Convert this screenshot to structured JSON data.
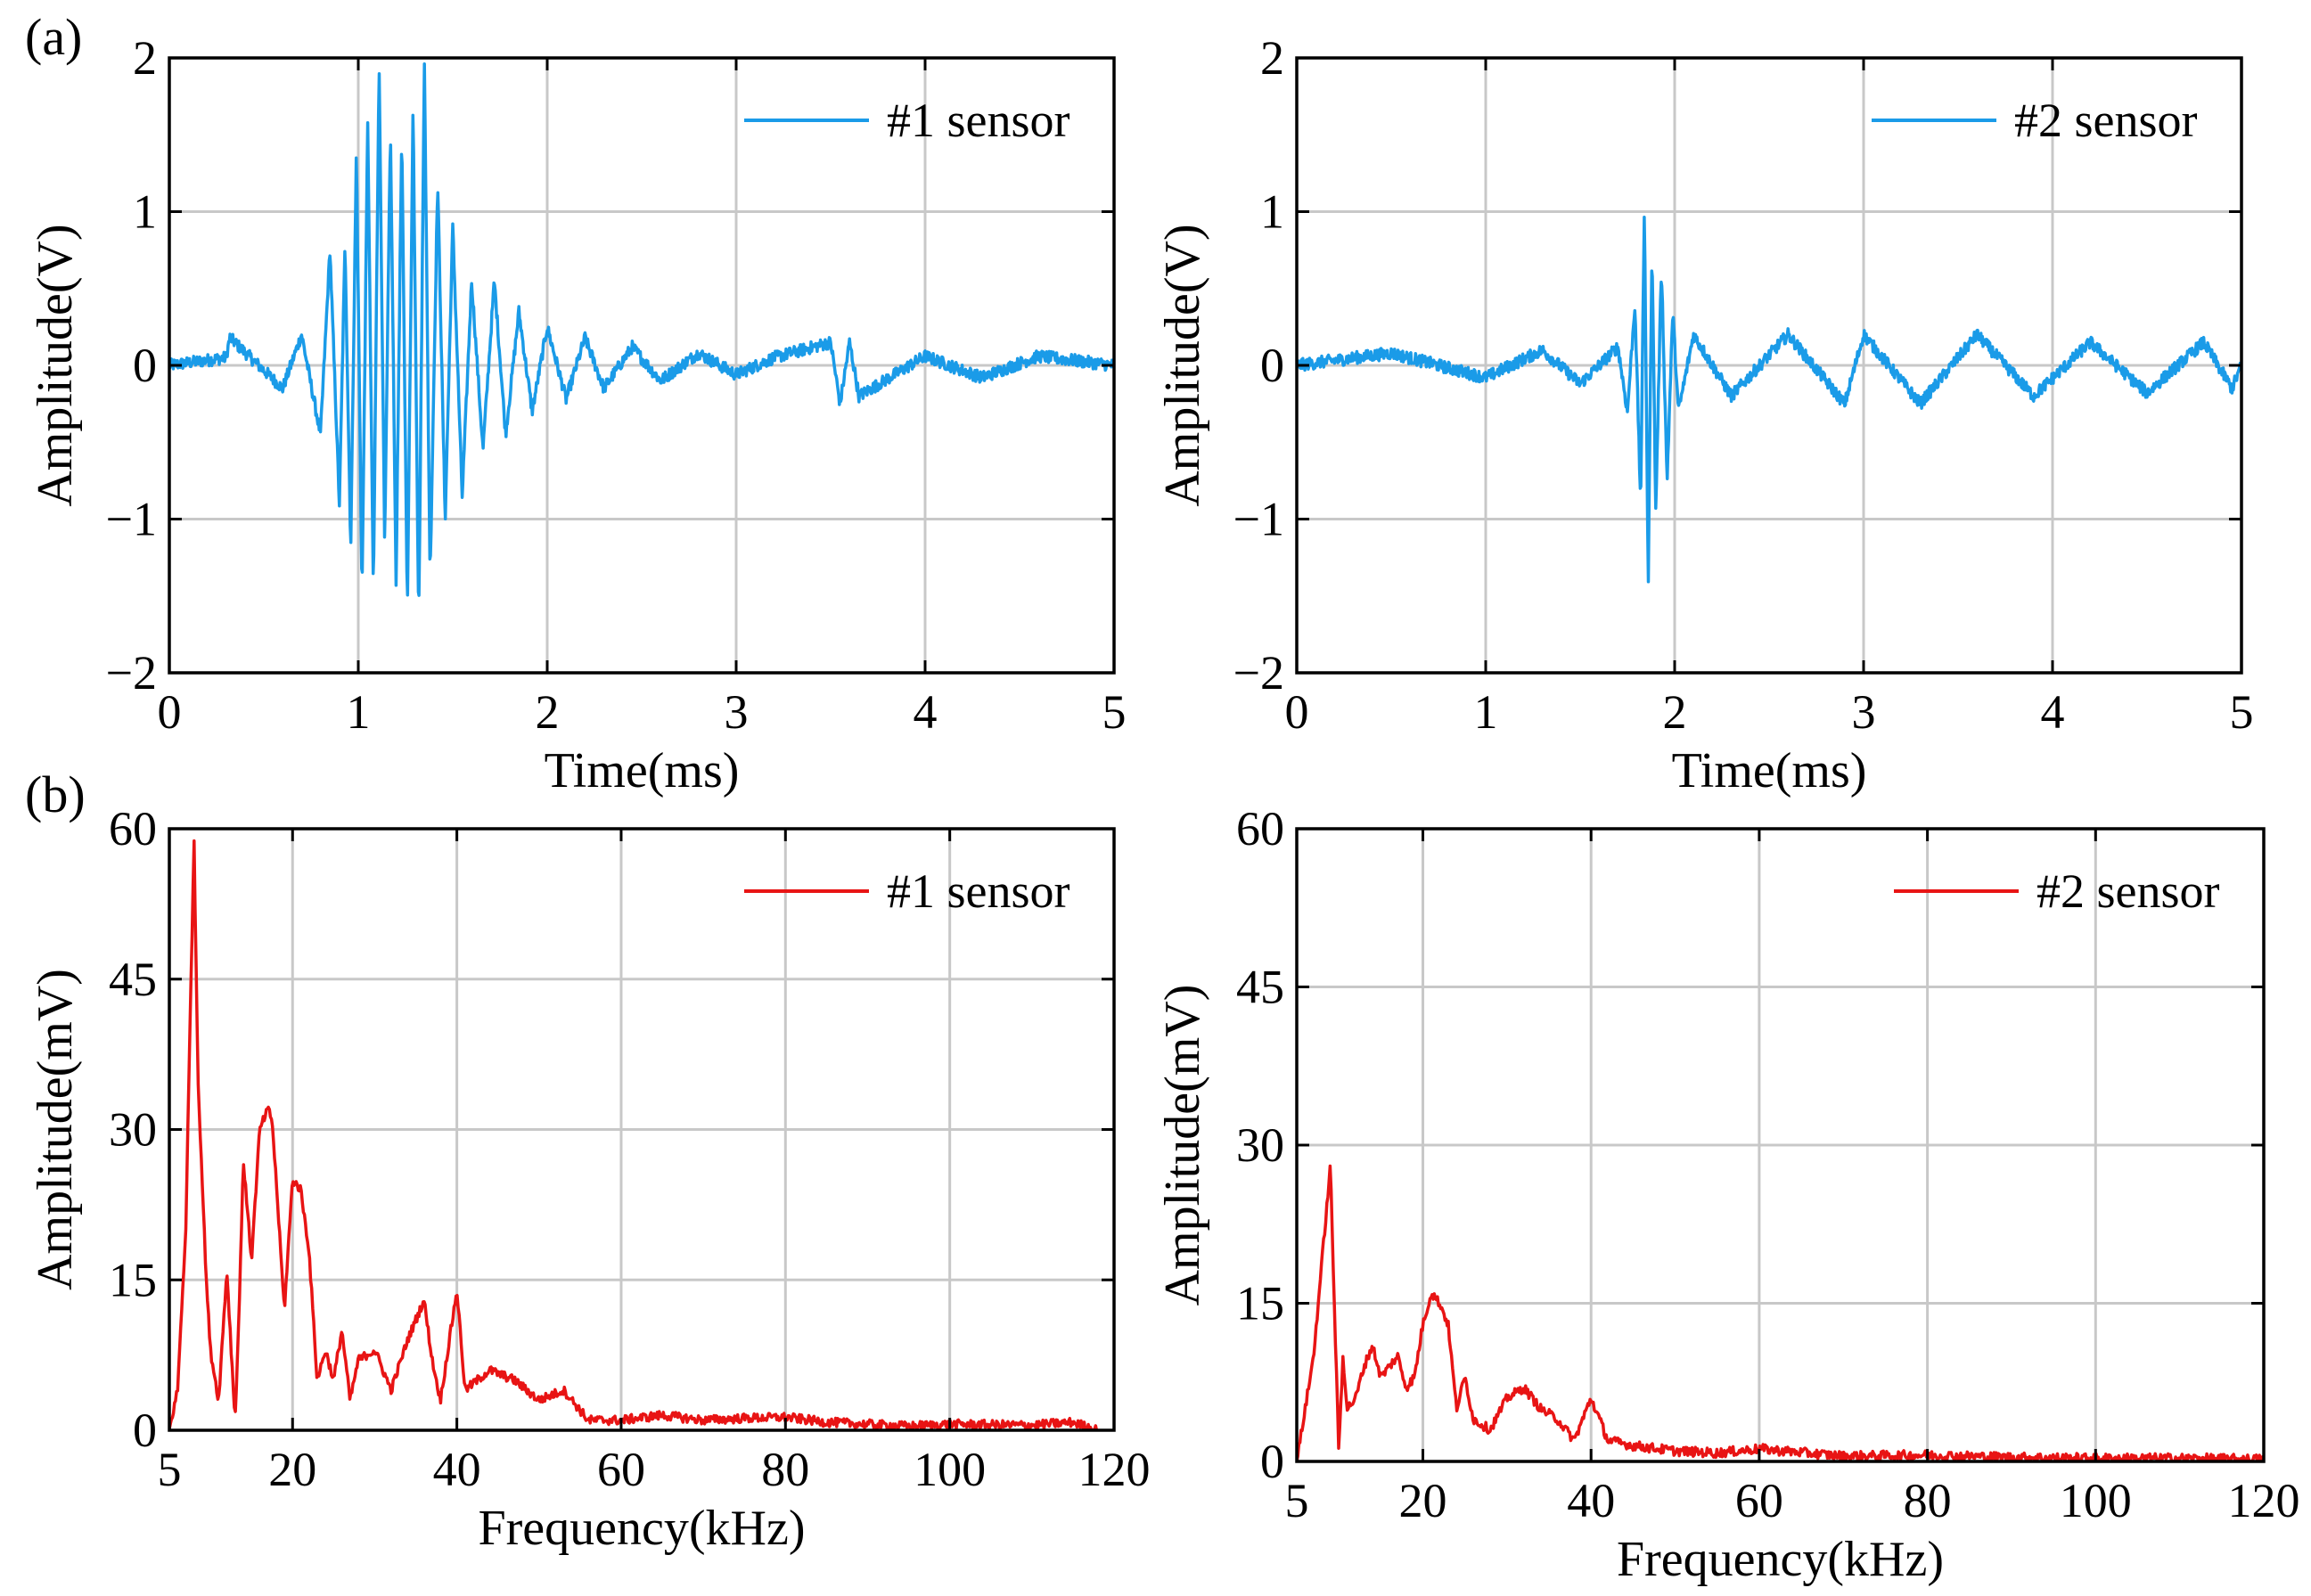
{
  "panel_labels": {
    "a": "(a)",
    "b": "(b)"
  },
  "colors": {
    "time_signal": "#1a9be8",
    "spectrum": "#e81414",
    "grid": "#c8c8c8",
    "axis": "#000000"
  },
  "chart_data": [
    {
      "id": "a1",
      "type": "line",
      "title": "",
      "xlabel": "Time(ms)",
      "ylabel": "Amplitude(V)",
      "xlim": [
        0,
        5
      ],
      "ylim": [
        -2,
        2
      ],
      "xticks": [
        0,
        1,
        2,
        3,
        4,
        5
      ],
      "xtick_labels": [
        "0",
        "1",
        "2",
        "3",
        "4",
        "5"
      ],
      "yticks": [
        -2,
        -1,
        0,
        1,
        2
      ],
      "ytick_labels": [
        "−2",
        "−1",
        "0",
        "1",
        "2"
      ],
      "grid": true,
      "legend_position": "top-right",
      "series": [
        {
          "name": "#1 sensor",
          "color": "#1a9be8",
          "x": [
            0,
            0.3,
            0.32,
            0.6,
            0.7,
            0.8,
            0.85,
            0.9,
            0.93,
            0.96,
            0.99,
            1.02,
            1.05,
            1.08,
            1.11,
            1.14,
            1.17,
            1.2,
            1.23,
            1.26,
            1.29,
            1.32,
            1.35,
            1.38,
            1.42,
            1.46,
            1.5,
            1.55,
            1.6,
            1.66,
            1.72,
            1.78,
            1.85,
            1.92,
            2.0,
            2.1,
            2.2,
            2.3,
            2.45,
            2.6,
            2.8,
            3.0,
            3.2,
            3.5,
            3.55,
            3.6,
            3.65,
            4.0,
            4.3,
            4.6,
            5.0
          ],
          "y": [
            0,
            0.05,
            0.18,
            -0.15,
            0.2,
            -0.45,
            0.75,
            -0.9,
            0.8,
            -1.2,
            1.4,
            -1.5,
            1.6,
            -1.5,
            2.0,
            -1.2,
            1.55,
            -1.4,
            1.5,
            -1.6,
            1.7,
            -1.7,
            2.0,
            -1.4,
            1.2,
            -1.0,
            0.9,
            -0.85,
            0.55,
            -0.55,
            0.55,
            -0.45,
            0.35,
            -0.3,
            0.25,
            -0.22,
            0.18,
            -0.15,
            0.12,
            -0.1,
            0.08,
            -0.06,
            0.05,
            0.15,
            -0.25,
            0.15,
            -0.2,
            0.06,
            -0.08,
            0.06,
            0
          ]
        }
      ]
    },
    {
      "id": "a2",
      "type": "line",
      "title": "",
      "xlabel": "Time(ms)",
      "ylabel": "Amplitude(V)",
      "xlim": [
        0,
        5
      ],
      "ylim": [
        -2,
        2
      ],
      "xticks": [
        0,
        1,
        2,
        3,
        4,
        5
      ],
      "xtick_labels": [
        "0",
        "1",
        "2",
        "3",
        "4",
        "5"
      ],
      "yticks": [
        -2,
        -1,
        0,
        1,
        2
      ],
      "ytick_labels": [
        "−2",
        "−1",
        "0",
        "1",
        "2"
      ],
      "grid": true,
      "legend_position": "top-right",
      "series": [
        {
          "name": "#2 sensor",
          "color": "#1a9be8",
          "x": [
            0,
            0.5,
            1.0,
            1.3,
            1.5,
            1.7,
            1.75,
            1.79,
            1.82,
            1.84,
            1.86,
            1.88,
            1.9,
            1.93,
            1.96,
            1.99,
            2.02,
            2.1,
            2.3,
            2.6,
            2.9,
            3.0,
            3.3,
            3.6,
            3.9,
            4.2,
            4.5,
            4.8,
            4.95,
            5.0
          ],
          "y": [
            0,
            0.08,
            -0.08,
            0.1,
            -0.12,
            0.12,
            -0.3,
            0.4,
            -0.9,
            1.05,
            -1.45,
            0.8,
            -0.95,
            0.65,
            -0.75,
            0.35,
            -0.3,
            0.2,
            -0.2,
            0.2,
            -0.25,
            0.2,
            -0.25,
            0.2,
            -0.2,
            0.15,
            -0.18,
            0.15,
            -0.15,
            0
          ]
        }
      ]
    },
    {
      "id": "b1",
      "type": "line",
      "title": "",
      "xlabel": "Frequency(kHz)",
      "ylabel": "Amplitude(mV)",
      "xlim": [
        5,
        120
      ],
      "ylim": [
        0,
        60
      ],
      "xticks": [
        5,
        20,
        40,
        60,
        80,
        100,
        120
      ],
      "xtick_labels": [
        "5",
        "20",
        "40",
        "60",
        "80",
        "100",
        "120"
      ],
      "yticks": [
        0,
        15,
        30,
        45,
        60
      ],
      "ytick_labels": [
        "0",
        "15",
        "30",
        "45",
        "60"
      ],
      "grid": true,
      "legend_position": "top-right",
      "series": [
        {
          "name": "#1 sensor",
          "color": "#e81414",
          "x": [
            5,
            6,
            7,
            8,
            8.5,
            9,
            9.5,
            10,
            11,
            12,
            13,
            13.5,
            14,
            15,
            16,
            17,
            17.5,
            18,
            19,
            20,
            21,
            22,
            23,
            24,
            25,
            26,
            27,
            28,
            30,
            32,
            34,
            36,
            37,
            38,
            40,
            41,
            44,
            47,
            50,
            53,
            56,
            60,
            65,
            70,
            75,
            80,
            85,
            90,
            95,
            100,
            110,
            115,
            118
          ],
          "y": [
            0,
            4,
            20,
            59,
            35,
            25,
            15,
            8,
            3,
            16,
            1,
            12,
            27,
            17,
            30,
            32,
            31,
            25,
            12,
            25,
            24,
            18,
            5,
            8,
            5,
            10,
            3,
            7,
            8,
            4,
            9,
            13,
            7,
            3,
            14,
            4,
            6,
            5,
            3,
            4,
            1,
            1,
            1.5,
            1,
            1.2,
            1.3,
            0.8,
            0.6,
            0.4,
            0.6,
            0.5,
            0.8,
            0
          ]
        }
      ]
    },
    {
      "id": "b2",
      "type": "line",
      "title": "",
      "xlabel": "Frequency(kHz)",
      "ylabel": "Amplitude(mV)",
      "xlim": [
        5,
        120
      ],
      "ylim": [
        0,
        60
      ],
      "xticks": [
        5,
        20,
        40,
        60,
        80,
        100,
        120
      ],
      "xtick_labels": [
        "5",
        "20",
        "40",
        "60",
        "80",
        "100",
        "120"
      ],
      "yticks": [
        0,
        15,
        30,
        45,
        60
      ],
      "ytick_labels": [
        "0",
        "15",
        "30",
        "45",
        "60"
      ],
      "grid": true,
      "legend_position": "top-right",
      "series": [
        {
          "name": "#2 sensor",
          "color": "#e81414",
          "x": [
            5,
            6,
            7,
            8,
            9,
            9.5,
            10,
            10.5,
            11,
            12,
            13,
            14,
            15,
            16,
            17,
            18,
            19,
            20,
            21,
            22,
            23,
            24,
            25,
            26,
            28,
            30,
            32,
            34,
            36,
            38,
            40,
            42,
            45,
            50,
            55,
            60,
            70,
            80,
            90,
            100,
            110,
            120
          ],
          "y": [
            0,
            5,
            10,
            19,
            28,
            14,
            1,
            10,
            5,
            6,
            9,
            11,
            8,
            9,
            10,
            7,
            8,
            13,
            16,
            15,
            13,
            5,
            8,
            4,
            3,
            6,
            7,
            5,
            4,
            2,
            6,
            2,
            1.5,
            1,
            0.8,
            1.2,
            0.5,
            0.6,
            0.4,
            0.3,
            0.3,
            0.2
          ]
        }
      ]
    }
  ]
}
